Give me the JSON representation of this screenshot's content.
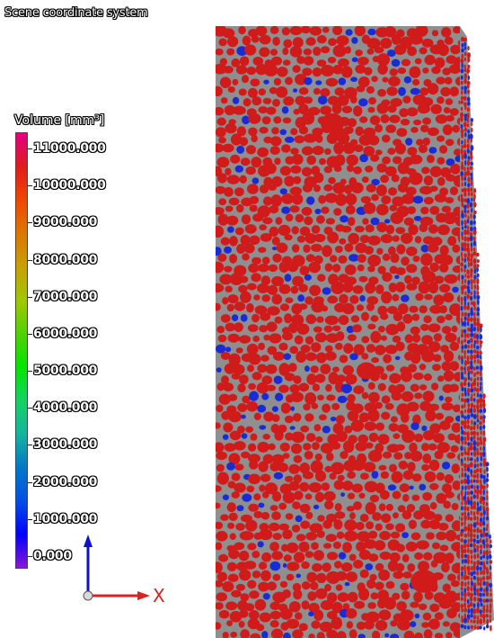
{
  "scene": {
    "coordinate_label": "Scene coordinate system"
  },
  "legend": {
    "title": "Volume [mm³]",
    "colors": [
      "#8a16d8",
      "#0000ff",
      "#0050e6",
      "#0078c8",
      "#14b4a0",
      "#14d264",
      "#00e600",
      "#50d200",
      "#a0c800",
      "#c8a000",
      "#dc7800",
      "#f04600",
      "#e11b1b",
      "#e60082"
    ],
    "ticks": [
      "0.000",
      "1000.000",
      "2000.000",
      "3000.000",
      "4000.000",
      "5000.000",
      "6000.000",
      "7000.000",
      "8000.000",
      "9000.000",
      "10000.000",
      "11000.000"
    ]
  },
  "axes": {
    "x_label": "X",
    "x_color": "#e02020",
    "y_color": "#1010c8"
  },
  "model": {
    "grain_color_large": "#d11a1a",
    "grain_color_small": "#1a2bd6",
    "matrix_color": "#8f8f8f"
  }
}
